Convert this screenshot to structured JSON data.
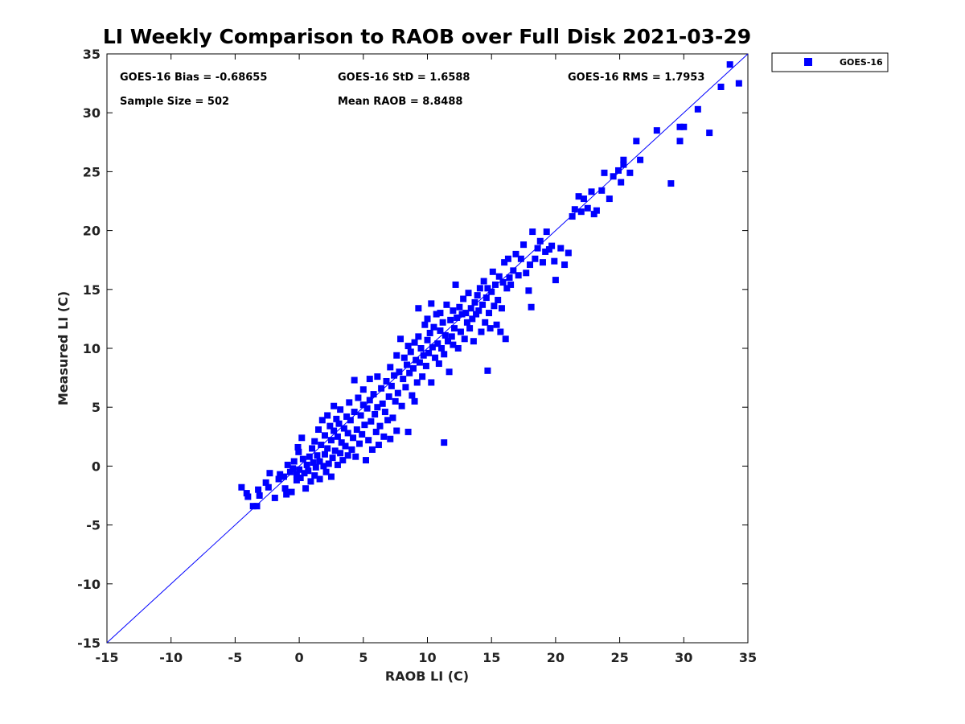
{
  "chart_data": {
    "type": "scatter",
    "title": "LI Weekly Comparison to RAOB over Full Disk 2021-03-29",
    "xlabel": "RAOB LI (C)",
    "ylabel": "Measured LI (C)",
    "xlim": [
      -15,
      35
    ],
    "ylim": [
      -15,
      35
    ],
    "xticks": [
      "-15",
      "-10",
      "-5",
      "0",
      "5",
      "10",
      "15",
      "20",
      "25",
      "30",
      "35"
    ],
    "yticks": [
      "-15",
      "-10",
      "-5",
      "0",
      "5",
      "10",
      "15",
      "20",
      "25",
      "30",
      "35"
    ],
    "grid": false,
    "legend_position": "outside-top-right",
    "reference_line": {
      "name": "1:1 line",
      "from": [
        -15,
        -15
      ],
      "to": [
        35,
        35
      ]
    },
    "stats": {
      "bias": "GOES-16 Bias = -0.68655",
      "std": "GOES-16 StD = 1.6588",
      "rms": "GOES-16 RMS = 1.7953",
      "sample_size": "Sample Size = 502",
      "mean_raob": "Mean RAOB = 8.8488"
    },
    "series": [
      {
        "name": "GOES-16",
        "color": "#0000ff",
        "marker": "square",
        "points": [
          [
            -4.5,
            -1.8
          ],
          [
            -4.1,
            -2.3
          ],
          [
            -4.0,
            -2.6
          ],
          [
            -3.6,
            -3.4
          ],
          [
            -3.3,
            -3.4
          ],
          [
            -3.2,
            -2.0
          ],
          [
            -3.1,
            -2.5
          ],
          [
            -2.6,
            -1.4
          ],
          [
            -2.4,
            -1.8
          ],
          [
            -2.3,
            -0.6
          ],
          [
            -1.9,
            -2.7
          ],
          [
            -1.6,
            -1.1
          ],
          [
            -1.5,
            -0.7
          ],
          [
            -1.2,
            -0.9
          ],
          [
            -1.1,
            -1.9
          ],
          [
            -1.0,
            -2.4
          ],
          [
            -0.9,
            0.1
          ],
          [
            -0.7,
            -0.5
          ],
          [
            -0.6,
            -2.2
          ],
          [
            -0.5,
            -0.2
          ],
          [
            -0.4,
            0.4
          ],
          [
            -0.2,
            -1.2
          ],
          [
            -0.2,
            -0.7
          ],
          [
            -0.1,
            1.6
          ],
          [
            -0.05,
            1.2
          ],
          [
            0.0,
            -0.3
          ],
          [
            0.1,
            -1.0
          ],
          [
            0.2,
            2.4
          ],
          [
            0.3,
            0.6
          ],
          [
            0.4,
            -0.6
          ],
          [
            0.5,
            -1.9
          ],
          [
            0.6,
            0.1
          ],
          [
            0.7,
            -0.4
          ],
          [
            0.8,
            0.8
          ],
          [
            0.9,
            -1.3
          ],
          [
            1.0,
            1.5
          ],
          [
            1.1,
            0.3
          ],
          [
            1.2,
            -0.8
          ],
          [
            1.2,
            2.1
          ],
          [
            1.3,
            -0.1
          ],
          [
            1.4,
            0.9
          ],
          [
            1.5,
            3.1
          ],
          [
            1.6,
            0.4
          ],
          [
            1.6,
            -1.1
          ],
          [
            1.7,
            1.8
          ],
          [
            1.8,
            3.9
          ],
          [
            1.9,
            0.0
          ],
          [
            2.0,
            2.6
          ],
          [
            2.0,
            1.0
          ],
          [
            2.1,
            -0.5
          ],
          [
            2.2,
            4.3
          ],
          [
            2.2,
            1.5
          ],
          [
            2.3,
            0.2
          ],
          [
            2.4,
            3.4
          ],
          [
            2.5,
            2.2
          ],
          [
            2.5,
            -0.9
          ],
          [
            2.6,
            0.7
          ],
          [
            2.7,
            3.0
          ],
          [
            2.7,
            5.1
          ],
          [
            2.8,
            1.3
          ],
          [
            2.9,
            4.0
          ],
          [
            3.0,
            0.1
          ],
          [
            3.0,
            2.5
          ],
          [
            3.1,
            3.6
          ],
          [
            3.2,
            1.1
          ],
          [
            3.2,
            4.8
          ],
          [
            3.3,
            2.0
          ],
          [
            3.4,
            0.5
          ],
          [
            3.5,
            3.2
          ],
          [
            3.6,
            1.7
          ],
          [
            3.7,
            4.2
          ],
          [
            3.8,
            0.9
          ],
          [
            3.8,
            2.8
          ],
          [
            3.9,
            5.4
          ],
          [
            4.0,
            3.9
          ],
          [
            4.1,
            1.4
          ],
          [
            4.2,
            2.4
          ],
          [
            4.3,
            4.6
          ],
          [
            4.3,
            7.3
          ],
          [
            4.4,
            0.8
          ],
          [
            4.5,
            3.1
          ],
          [
            4.6,
            5.8
          ],
          [
            4.7,
            1.9
          ],
          [
            4.8,
            4.3
          ],
          [
            4.9,
            2.7
          ],
          [
            5.0,
            6.5
          ],
          [
            5.0,
            5.2
          ],
          [
            5.1,
            3.5
          ],
          [
            5.2,
            0.5
          ],
          [
            5.3,
            4.9
          ],
          [
            5.4,
            2.2
          ],
          [
            5.5,
            5.6
          ],
          [
            5.5,
            7.4
          ],
          [
            5.6,
            3.8
          ],
          [
            5.7,
            1.4
          ],
          [
            5.8,
            6.1
          ],
          [
            5.9,
            4.4
          ],
          [
            6.0,
            2.9
          ],
          [
            6.1,
            5.0
          ],
          [
            6.1,
            7.6
          ],
          [
            6.2,
            1.8
          ],
          [
            6.3,
            3.4
          ],
          [
            6.4,
            6.6
          ],
          [
            6.5,
            5.3
          ],
          [
            6.6,
            2.5
          ],
          [
            6.7,
            4.6
          ],
          [
            6.8,
            7.2
          ],
          [
            6.9,
            3.9
          ],
          [
            7.0,
            5.9
          ],
          [
            7.1,
            8.4
          ],
          [
            7.1,
            2.3
          ],
          [
            7.2,
            6.8
          ],
          [
            7.3,
            4.1
          ],
          [
            7.4,
            7.7
          ],
          [
            7.5,
            5.5
          ],
          [
            7.6,
            9.4
          ],
          [
            7.6,
            3.0
          ],
          [
            7.7,
            6.2
          ],
          [
            7.8,
            8.0
          ],
          [
            7.9,
            10.8
          ],
          [
            8.0,
            5.1
          ],
          [
            8.1,
            7.4
          ],
          [
            8.2,
            9.2
          ],
          [
            8.3,
            6.7
          ],
          [
            8.4,
            8.6
          ],
          [
            8.5,
            2.9
          ],
          [
            8.5,
            10.2
          ],
          [
            8.6,
            7.9
          ],
          [
            8.7,
            9.7
          ],
          [
            8.8,
            6.0
          ],
          [
            8.9,
            8.3
          ],
          [
            9.0,
            10.5
          ],
          [
            9.0,
            5.5
          ],
          [
            9.1,
            9.0
          ],
          [
            9.2,
            7.1
          ],
          [
            9.3,
            11.0
          ],
          [
            9.3,
            13.4
          ],
          [
            9.4,
            8.8
          ],
          [
            9.5,
            10.0
          ],
          [
            9.6,
            7.6
          ],
          [
            9.7,
            9.4
          ],
          [
            9.8,
            12.0
          ],
          [
            9.9,
            8.5
          ],
          [
            10.0,
            10.7
          ],
          [
            10.0,
            12.5
          ],
          [
            10.1,
            9.6
          ],
          [
            10.2,
            11.3
          ],
          [
            10.3,
            7.1
          ],
          [
            10.3,
            13.8
          ],
          [
            10.4,
            10.1
          ],
          [
            10.5,
            11.8
          ],
          [
            10.6,
            9.2
          ],
          [
            10.7,
            12.9
          ],
          [
            10.8,
            10.4
          ],
          [
            10.9,
            8.7
          ],
          [
            11.0,
            11.5
          ],
          [
            11.0,
            13.0
          ],
          [
            11.1,
            10.0
          ],
          [
            11.2,
            12.2
          ],
          [
            11.3,
            2.0
          ],
          [
            11.3,
            9.5
          ],
          [
            11.4,
            11.1
          ],
          [
            11.5,
            13.7
          ],
          [
            11.6,
            10.6
          ],
          [
            11.7,
            8.0
          ],
          [
            11.8,
            12.4
          ],
          [
            11.9,
            11.0
          ],
          [
            12.0,
            10.3
          ],
          [
            12.0,
            13.2
          ],
          [
            12.1,
            11.7
          ],
          [
            12.2,
            15.4
          ],
          [
            12.3,
            12.6
          ],
          [
            12.4,
            10.0
          ],
          [
            12.5,
            13.5
          ],
          [
            12.6,
            11.4
          ],
          [
            12.7,
            12.9
          ],
          [
            12.8,
            14.2
          ],
          [
            12.9,
            10.8
          ],
          [
            13.0,
            13.0
          ],
          [
            13.1,
            12.2
          ],
          [
            13.2,
            14.7
          ],
          [
            13.3,
            11.7
          ],
          [
            13.4,
            13.4
          ],
          [
            13.5,
            12.5
          ],
          [
            13.6,
            10.6
          ],
          [
            13.7,
            13.9
          ],
          [
            13.8,
            12.9
          ],
          [
            13.9,
            14.5
          ],
          [
            14.0,
            13.2
          ],
          [
            14.1,
            15.1
          ],
          [
            14.2,
            11.4
          ],
          [
            14.3,
            13.7
          ],
          [
            14.4,
            15.7
          ],
          [
            14.5,
            12.2
          ],
          [
            14.6,
            14.3
          ],
          [
            14.7,
            8.1
          ],
          [
            14.7,
            15.1
          ],
          [
            14.8,
            13.0
          ],
          [
            14.9,
            11.7
          ],
          [
            15.0,
            14.8
          ],
          [
            15.1,
            16.5
          ],
          [
            15.2,
            13.6
          ],
          [
            15.3,
            15.4
          ],
          [
            15.4,
            12.0
          ],
          [
            15.5,
            14.1
          ],
          [
            15.6,
            16.1
          ],
          [
            15.7,
            11.4
          ],
          [
            15.8,
            13.4
          ],
          [
            15.9,
            15.6
          ],
          [
            16.0,
            17.3
          ],
          [
            16.1,
            10.8
          ],
          [
            16.2,
            15.1
          ],
          [
            16.3,
            17.6
          ],
          [
            16.4,
            16.0
          ],
          [
            16.5,
            15.4
          ],
          [
            16.7,
            16.6
          ],
          [
            16.9,
            18.0
          ],
          [
            17.1,
            16.2
          ],
          [
            17.3,
            17.6
          ],
          [
            17.5,
            18.8
          ],
          [
            17.7,
            16.4
          ],
          [
            17.9,
            14.9
          ],
          [
            18.0,
            17.1
          ],
          [
            18.1,
            13.5
          ],
          [
            18.2,
            19.9
          ],
          [
            18.4,
            17.6
          ],
          [
            18.6,
            18.5
          ],
          [
            18.8,
            19.1
          ],
          [
            19.0,
            17.3
          ],
          [
            19.2,
            18.2
          ],
          [
            19.3,
            19.9
          ],
          [
            19.5,
            18.4
          ],
          [
            19.7,
            18.7
          ],
          [
            19.9,
            17.4
          ],
          [
            20.0,
            15.8
          ],
          [
            20.4,
            18.5
          ],
          [
            20.7,
            17.1
          ],
          [
            21.0,
            18.1
          ],
          [
            21.3,
            21.2
          ],
          [
            21.5,
            21.8
          ],
          [
            21.8,
            22.9
          ],
          [
            22.0,
            21.6
          ],
          [
            22.2,
            22.7
          ],
          [
            22.5,
            21.9
          ],
          [
            22.8,
            23.3
          ],
          [
            23.0,
            21.4
          ],
          [
            23.2,
            21.7
          ],
          [
            23.6,
            23.4
          ],
          [
            23.8,
            24.9
          ],
          [
            24.2,
            22.7
          ],
          [
            24.5,
            24.6
          ],
          [
            24.9,
            25.1
          ],
          [
            25.1,
            24.1
          ],
          [
            25.3,
            26.0
          ],
          [
            25.3,
            25.6
          ],
          [
            25.8,
            24.9
          ],
          [
            26.3,
            27.6
          ],
          [
            26.6,
            26.0
          ],
          [
            27.9,
            28.5
          ],
          [
            29.0,
            24.0
          ],
          [
            29.7,
            27.6
          ],
          [
            29.7,
            28.8
          ],
          [
            30.0,
            28.8
          ],
          [
            31.1,
            30.3
          ],
          [
            32.0,
            28.3
          ],
          [
            32.9,
            32.2
          ],
          [
            33.6,
            34.1
          ],
          [
            34.3,
            32.5
          ]
        ]
      }
    ]
  },
  "legend": {
    "label": "GOES-16"
  }
}
